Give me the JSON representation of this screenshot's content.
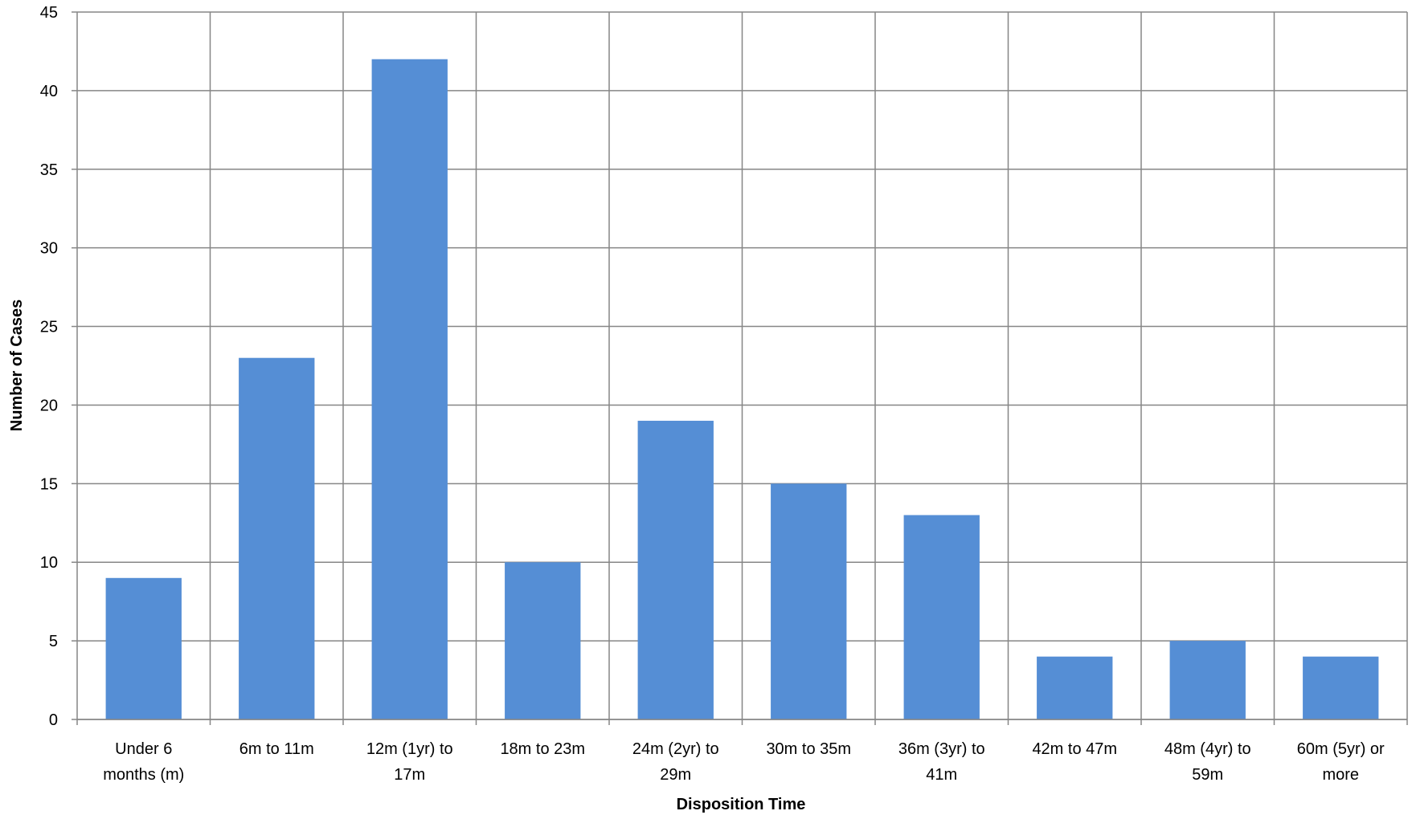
{
  "chart_data": {
    "type": "bar",
    "categories": [
      [
        "Under 6",
        "months (m)"
      ],
      [
        "6m to 11m"
      ],
      [
        "12m (1yr) to",
        "17m"
      ],
      [
        "18m to 23m"
      ],
      [
        "24m (2yr) to",
        "29m"
      ],
      [
        "30m to 35m"
      ],
      [
        "36m (3yr) to",
        "41m"
      ],
      [
        "42m to 47m"
      ],
      [
        "48m (4yr) to",
        "59m"
      ],
      [
        "60m (5yr) or",
        "more"
      ]
    ],
    "values": [
      9,
      23,
      42,
      10,
      19,
      15,
      13,
      4,
      5,
      4
    ],
    "xlabel": "Disposition Time",
    "ylabel": "Number of Cases",
    "ylim": [
      0,
      45
    ],
    "yticks": [
      0,
      5,
      10,
      15,
      20,
      25,
      30,
      35,
      40,
      45
    ],
    "grid": "both",
    "bar_color": "#558ed5",
    "grid_color": "#868686"
  }
}
